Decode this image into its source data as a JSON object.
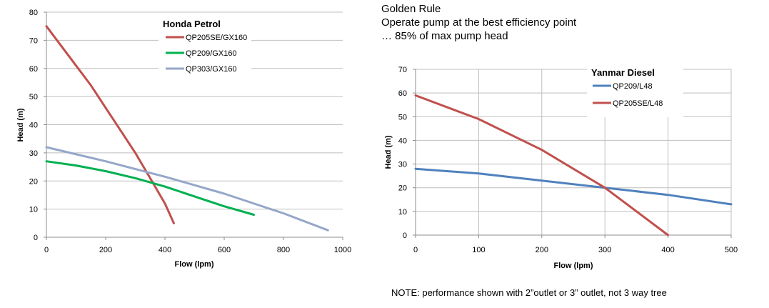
{
  "golden_rule": {
    "title": "Golden Rule",
    "line1": "Operate pump at the best efficiency point",
    "line2": "… 85% of max pump head"
  },
  "footnote": "NOTE: performance shown with 2”outlet or 3” outlet, not 3 way tree",
  "chart_data": [
    {
      "type": "line",
      "legend_title": "Honda Petrol",
      "xlabel": "Flow (lpm)",
      "ylabel": "Head (m)",
      "xlim": [
        0,
        1000
      ],
      "ylim": [
        0,
        80
      ],
      "xticks": [
        "0",
        "200",
        "400",
        "600",
        "800",
        "1000"
      ],
      "yticks": [
        "0",
        "10",
        "20",
        "30",
        "40",
        "50",
        "60",
        "70",
        "80"
      ],
      "grid": true,
      "legend_position": "top-center",
      "series": [
        {
          "name": "QP205SE/GX160",
          "color": "#c0504d",
          "x": [
            0,
            50,
            100,
            150,
            200,
            250,
            300,
            350,
            400,
            430
          ],
          "y": [
            75,
            68,
            61,
            54,
            46,
            38,
            30,
            21,
            12,
            5
          ]
        },
        {
          "name": "QP209/GX160",
          "color": "#00b050",
          "x": [
            0,
            100,
            200,
            300,
            400,
            500,
            600,
            700
          ],
          "y": [
            27,
            25.5,
            23.5,
            21,
            18,
            14.5,
            11,
            8
          ]
        },
        {
          "name": "QP303/GX160",
          "color": "#95a7c9",
          "x": [
            0,
            200,
            400,
            600,
            800,
            950
          ],
          "y": [
            32,
            27,
            21.5,
            15.5,
            8.5,
            2.5
          ]
        }
      ]
    },
    {
      "type": "line",
      "legend_title": "Yanmar Diesel",
      "xlabel": "Flow (lpm)",
      "ylabel": "Head (m)",
      "xlim": [
        0,
        500
      ],
      "ylim": [
        0,
        70
      ],
      "xticks": [
        "0",
        "100",
        "200",
        "300",
        "400",
        "500"
      ],
      "yticks": [
        "0",
        "10",
        "20",
        "30",
        "40",
        "50",
        "60",
        "70"
      ],
      "grid": true,
      "legend_position": "top-right",
      "series": [
        {
          "name": "QP209/L48",
          "color": "#4f81bd",
          "x": [
            0,
            100,
            200,
            300,
            400,
            500
          ],
          "y": [
            28,
            26,
            23,
            20,
            17,
            13
          ]
        },
        {
          "name": "QP205SE/L48",
          "color": "#c0504d",
          "x": [
            0,
            100,
            200,
            300,
            400
          ],
          "y": [
            59,
            49,
            36,
            20,
            0
          ]
        }
      ]
    }
  ]
}
